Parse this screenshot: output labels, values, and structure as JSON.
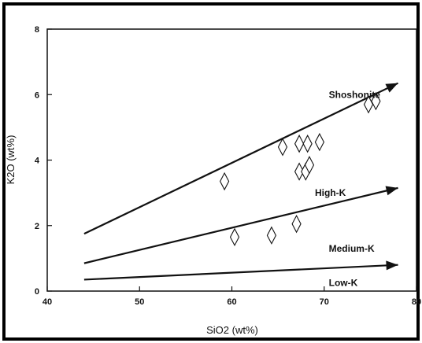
{
  "chart_data": {
    "type": "scatter",
    "title": "",
    "xlabel": "SiO2 (wt%)",
    "ylabel": "K2O (wt%)",
    "xlim": [
      40,
      80
    ],
    "ylim": [
      0,
      8
    ],
    "x_ticks": [
      40,
      50,
      60,
      70,
      80
    ],
    "y_ticks": [
      0,
      2,
      4,
      6,
      8
    ],
    "grid": false,
    "marker": "diamond",
    "points": [
      {
        "x": 59.2,
        "y": 3.35
      },
      {
        "x": 60.3,
        "y": 1.65
      },
      {
        "x": 64.3,
        "y": 1.7
      },
      {
        "x": 65.5,
        "y": 4.4
      },
      {
        "x": 67.0,
        "y": 2.05
      },
      {
        "x": 67.3,
        "y": 4.5
      },
      {
        "x": 67.3,
        "y": 3.65
      },
      {
        "x": 68.0,
        "y": 3.65
      },
      {
        "x": 68.2,
        "y": 4.5
      },
      {
        "x": 68.4,
        "y": 3.85
      },
      {
        "x": 69.5,
        "y": 4.55
      },
      {
        "x": 74.8,
        "y": 5.7
      },
      {
        "x": 75.6,
        "y": 5.8
      }
    ],
    "boundaries": [
      {
        "label": "Shoshonite",
        "x1": 44,
        "y1": 1.75,
        "x2": 78,
        "y2": 6.35
      },
      {
        "label": "High-K",
        "x1": 44,
        "y1": 0.85,
        "x2": 78,
        "y2": 3.15
      },
      {
        "label": "Medium-K",
        "x1": 44,
        "y1": 0.35,
        "x2": 78,
        "y2": 0.8
      }
    ],
    "annotations": [
      {
        "text": "Shoshonite",
        "x": 70.5,
        "y": 6.0
      },
      {
        "text": "High-K",
        "x": 69.0,
        "y": 3.0
      },
      {
        "text": "Medium-K",
        "x": 70.5,
        "y": 1.3
      },
      {
        "text": "Low-K",
        "x": 70.5,
        "y": 0.25
      }
    ]
  }
}
